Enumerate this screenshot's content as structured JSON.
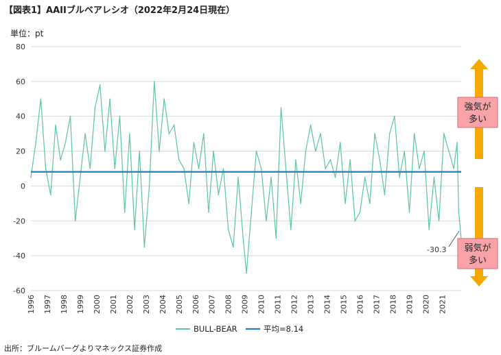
{
  "title": "【図表1】AAIIブルベアレシオ（2022年2月24日現在）",
  "unit_label": "単位：pt",
  "source": "出所：ブルームバーグよりマネックス証券作成",
  "colors": {
    "series": "#5cc4a4",
    "average": "#1f7fbf",
    "arrow": "#f5a800",
    "box_fill": "#f9a3a9",
    "box_border": "#d26a72",
    "grid": "#d9d9d9"
  },
  "chart_data": {
    "type": "line",
    "ylim": [
      -60,
      80
    ],
    "yticks": [
      80,
      60,
      40,
      20,
      0,
      -20,
      -40,
      -60
    ],
    "xticks": [
      "1996",
      "1997",
      "1998",
      "1999",
      "2000",
      "2001",
      "2002",
      "2003",
      "2004",
      "2005",
      "2006",
      "2007",
      "2008",
      "2009",
      "2010",
      "2011",
      "2012",
      "2013",
      "2014",
      "2015",
      "2016",
      "2017",
      "2018",
      "2019",
      "2020",
      "2021"
    ],
    "xlim": [
      1996,
      2022.15
    ],
    "grid": true,
    "legend_position": "bottom-center",
    "series": [
      {
        "name": "BULL-BEAR",
        "x": [
          1996.0,
          1996.3,
          1996.6,
          1996.9,
          1997.2,
          1997.5,
          1997.8,
          1998.1,
          1998.4,
          1998.7,
          1999.0,
          1999.3,
          1999.6,
          1999.9,
          2000.2,
          2000.5,
          2000.8,
          2001.1,
          2001.4,
          2001.7,
          2002.0,
          2002.3,
          2002.6,
          2002.9,
          2003.2,
          2003.5,
          2003.8,
          2004.1,
          2004.4,
          2004.7,
          2005.0,
          2005.3,
          2005.6,
          2005.9,
          2006.2,
          2006.5,
          2006.8,
          2007.1,
          2007.4,
          2007.7,
          2008.0,
          2008.3,
          2008.6,
          2008.9,
          2009.1,
          2009.4,
          2009.7,
          2010.0,
          2010.3,
          2010.6,
          2010.9,
          2011.2,
          2011.5,
          2011.8,
          2012.1,
          2012.4,
          2012.7,
          2013.0,
          2013.3,
          2013.6,
          2013.9,
          2014.2,
          2014.5,
          2014.8,
          2015.1,
          2015.4,
          2015.7,
          2016.0,
          2016.3,
          2016.6,
          2016.9,
          2017.2,
          2017.5,
          2017.8,
          2018.1,
          2018.4,
          2018.7,
          2019.0,
          2019.3,
          2019.6,
          2019.9,
          2020.2,
          2020.5,
          2020.8,
          2021.1,
          2021.4,
          2021.7,
          2021.9,
          2022.0,
          2022.15
        ],
        "values": [
          5,
          25,
          50,
          10,
          -5,
          35,
          15,
          25,
          40,
          -20,
          5,
          30,
          10,
          45,
          58,
          20,
          50,
          10,
          40,
          -15,
          30,
          -25,
          20,
          -35,
          0,
          60,
          20,
          50,
          30,
          35,
          15,
          10,
          -10,
          25,
          10,
          30,
          -15,
          20,
          -5,
          10,
          -25,
          -35,
          5,
          -30,
          -50,
          -15,
          20,
          10,
          -20,
          5,
          -30,
          45,
          10,
          -25,
          15,
          -10,
          20,
          35,
          20,
          30,
          10,
          15,
          5,
          25,
          -10,
          15,
          -20,
          -15,
          5,
          -10,
          30,
          15,
          -5,
          30,
          40,
          5,
          20,
          -15,
          30,
          10,
          20,
          -25,
          5,
          -20,
          30,
          20,
          10,
          25,
          -15,
          -30.3
        ]
      },
      {
        "name": "平均=8.14",
        "value": 8.14
      }
    ],
    "annotations": [
      {
        "text": "-30.3"
      },
      {
        "text": "強気が多い"
      },
      {
        "text": "弱気が多い"
      }
    ]
  },
  "annotation_lines": {
    "bull": [
      "強気が",
      "多い"
    ],
    "bear": [
      "弱気が",
      "多い"
    ]
  }
}
